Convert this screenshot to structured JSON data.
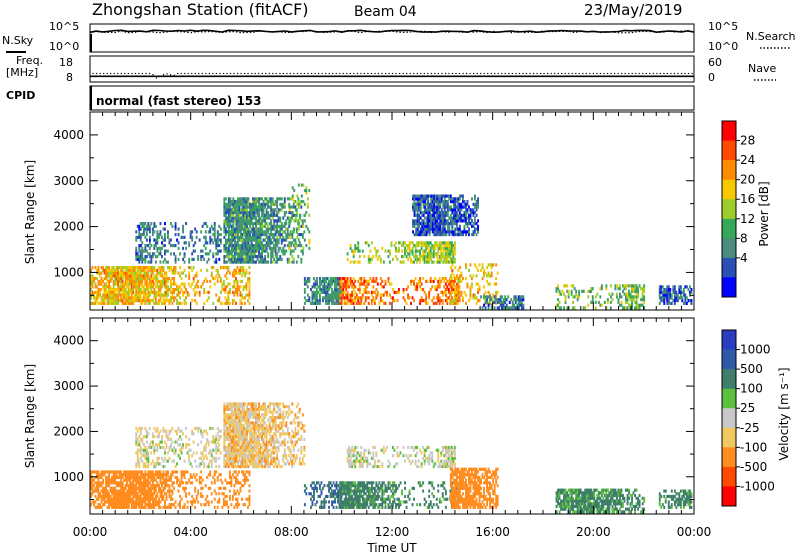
{
  "header": {
    "station": "Zhongshan Station (fitACF)",
    "beam": "Beam 04",
    "date": "23/May/2019"
  },
  "noise_panel": {
    "left_label": "N.Sky",
    "right_label": "N.Search",
    "left_ticks": [
      "10^5",
      "10^0"
    ],
    "right_ticks": [
      "10^5",
      "10^0"
    ]
  },
  "freq_panel": {
    "left_label_1": "Freq.",
    "left_label_2": "[MHz]",
    "right_label": "Nave",
    "left_ticks": [
      "18",
      "8"
    ],
    "right_ticks": [
      "60",
      "0"
    ]
  },
  "cpid": {
    "label": "CPID",
    "mode": "normal (fast stereo) 153"
  },
  "x_axis": {
    "label": "Time UT",
    "ticks": [
      "00:00",
      "04:00",
      "08:00",
      "12:00",
      "16:00",
      "20:00",
      "00:00"
    ]
  },
  "y_axis": {
    "label": "Slant Range [km]",
    "ticks": [
      "4000",
      "3000",
      "2000",
      "1000"
    ]
  },
  "power_scale": {
    "title": "Power [dB]",
    "ticks": [
      "28",
      "24",
      "20",
      "16",
      "12",
      "8",
      "4"
    ],
    "colors": [
      "#ff0000",
      "#ff4a00",
      "#ff8c00",
      "#f5c800",
      "#9ccd2a",
      "#36a85a",
      "#4a8c7e",
      "#2a4fb5",
      "#0000ff"
    ]
  },
  "velocity_scale": {
    "title": "Velocity [m s⁻¹]",
    "ticks": [
      "1000",
      "500",
      "100",
      "25",
      "-25",
      "-100",
      "-500",
      "-1000"
    ],
    "colors": [
      "#2a3cc0",
      "#2e5aa8",
      "#3e7e6a",
      "#5cbf3e",
      "#c8c8c8",
      "#f0c860",
      "#ff8c1e",
      "#ff4a00",
      "#ff0000"
    ]
  },
  "chart_data": [
    {
      "type": "line",
      "title": "",
      "x_range_hours": [
        0,
        24
      ],
      "y_scale": "log",
      "ylim": [
        "10^0",
        "10^5"
      ],
      "series": [
        {
          "name": "N.Sky",
          "style": "solid",
          "level_log10": 3.7
        },
        {
          "name": "N.Search",
          "style": "dotted",
          "level_log10": 3.6
        }
      ]
    },
    {
      "type": "scatter",
      "title": "",
      "x_range_hours": [
        0,
        24
      ],
      "ylim": [
        8,
        18
      ],
      "series": [
        {
          "name": "Freq.",
          "style": "solid",
          "value_mhz": 10.2
        },
        {
          "name": "Nave",
          "style": "dotted",
          "value": 21
        }
      ]
    },
    {
      "type": "heatmap",
      "parameter": "Power",
      "units": "dB",
      "x_range_hours": [
        0,
        24
      ],
      "y_range_km": [
        180,
        4500
      ],
      "color_range": [
        0,
        30
      ],
      "regions": [
        {
          "t": [
            0.0,
            6.3
          ],
          "r": [
            300,
            1100
          ],
          "level": 20
        },
        {
          "t": [
            1.8,
            5.2
          ],
          "r": [
            1200,
            2100
          ],
          "level": 8
        },
        {
          "t": [
            5.3,
            8.5
          ],
          "r": [
            1200,
            2600
          ],
          "level": 10
        },
        {
          "t": [
            7.9,
            8.7
          ],
          "r": [
            1500,
            2900
          ],
          "level": 14
        },
        {
          "t": [
            8.5,
            10.0
          ],
          "r": [
            300,
            900
          ],
          "level": 9
        },
        {
          "t": [
            9.9,
            14.7
          ],
          "r": [
            300,
            900
          ],
          "level": 24
        },
        {
          "t": [
            10.2,
            14.5
          ],
          "r": [
            1200,
            1650
          ],
          "level": 16
        },
        {
          "t": [
            12.8,
            15.4
          ],
          "r": [
            1800,
            2700
          ],
          "level": 6
        },
        {
          "t": [
            14.3,
            16.2
          ],
          "r": [
            300,
            1200
          ],
          "level": 20
        },
        {
          "t": [
            15.5,
            17.2
          ],
          "r": [
            200,
            500
          ],
          "level": 8
        },
        {
          "t": [
            18.5,
            22.0
          ],
          "r": [
            200,
            700
          ],
          "level": 14
        },
        {
          "t": [
            22.6,
            23.9
          ],
          "r": [
            300,
            700
          ],
          "level": 6
        }
      ]
    },
    {
      "type": "heatmap",
      "parameter": "Velocity",
      "units": "m s⁻¹",
      "x_range_hours": [
        0,
        24
      ],
      "y_range_km": [
        180,
        4500
      ],
      "color_range": [
        -1000,
        1000
      ],
      "regions": [
        {
          "t": [
            0.0,
            6.3
          ],
          "r": [
            300,
            1100
          ],
          "velocity": -300
        },
        {
          "t": [
            1.8,
            5.2
          ],
          "r": [
            1200,
            2100
          ],
          "velocity": -20
        },
        {
          "t": [
            5.3,
            8.5
          ],
          "r": [
            1200,
            2600
          ],
          "velocity": -60
        },
        {
          "t": [
            8.5,
            10.0
          ],
          "r": [
            300,
            900
          ],
          "velocity": 500
        },
        {
          "t": [
            9.9,
            14.7
          ],
          "r": [
            300,
            900
          ],
          "velocity": 200
        },
        {
          "t": [
            10.2,
            14.5
          ],
          "r": [
            1200,
            1650
          ],
          "velocity": 0
        },
        {
          "t": [
            14.3,
            16.2
          ],
          "r": [
            300,
            1200
          ],
          "velocity": -300
        },
        {
          "t": [
            18.5,
            22.0
          ],
          "r": [
            200,
            700
          ],
          "velocity": 150
        },
        {
          "t": [
            22.6,
            23.9
          ],
          "r": [
            300,
            700
          ],
          "velocity": 200
        }
      ]
    }
  ]
}
